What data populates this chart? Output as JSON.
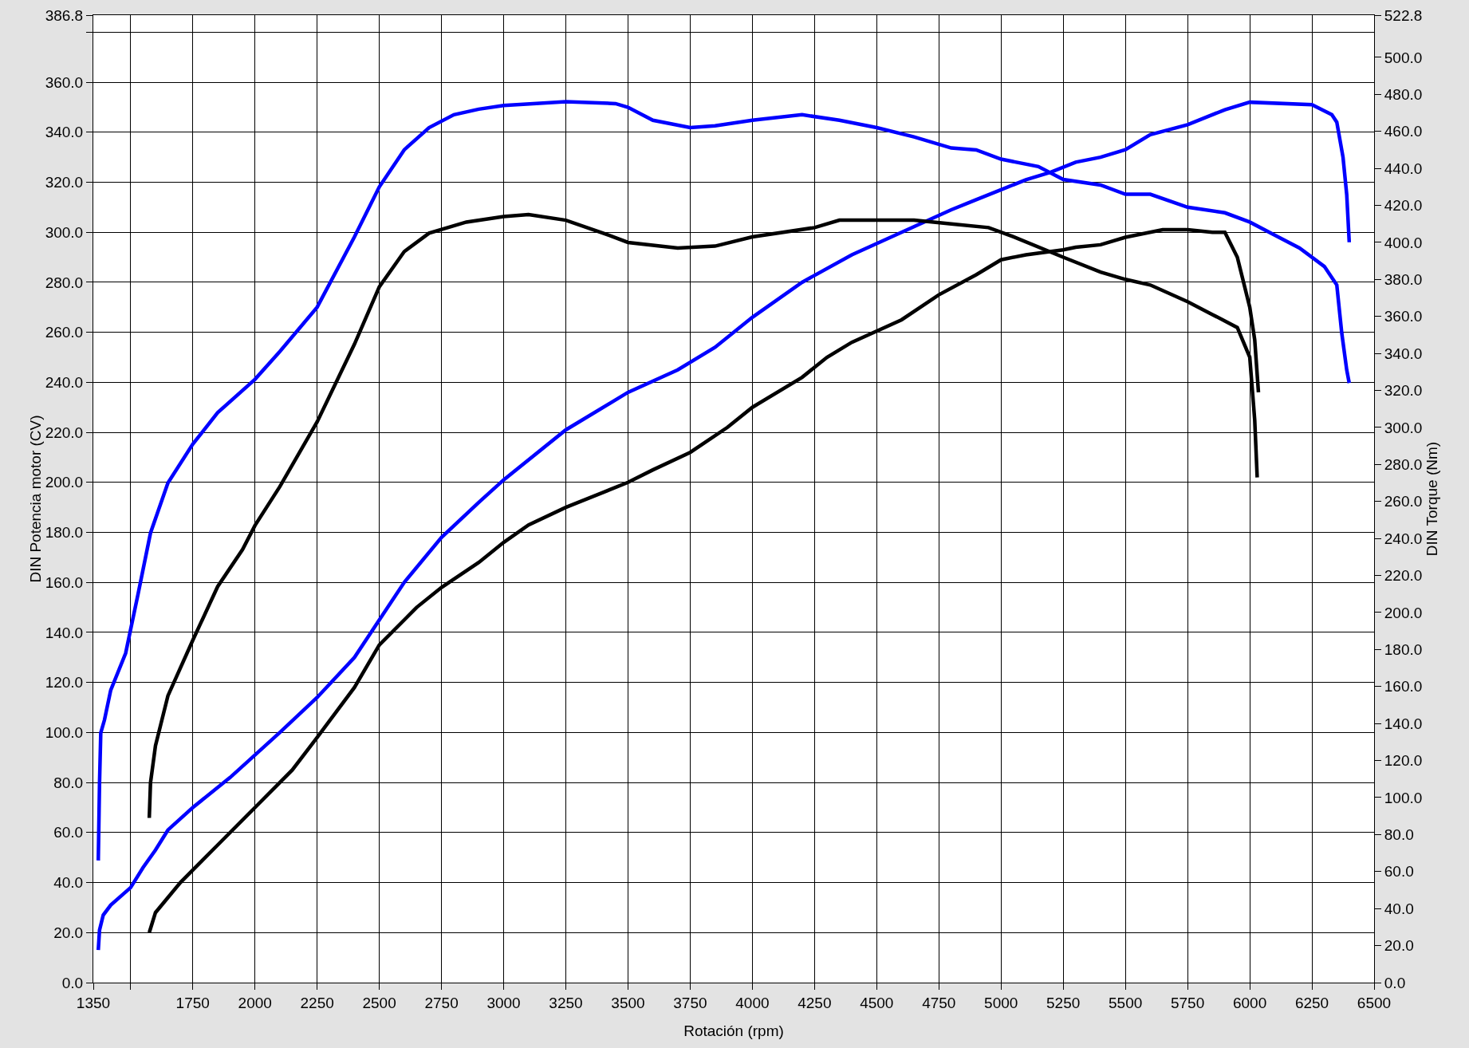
{
  "chart_data": {
    "type": "line",
    "xlabel": "Rotación (rpm)",
    "ylabel": "DIN Potencia motor (CV)",
    "y2label": "DIN Torque (Nm)",
    "grid": true,
    "xlim": [
      1350,
      6500
    ],
    "xticks": [
      1350,
      {
        "value": 1500,
        "label": null
      },
      1750,
      2000,
      2250,
      2500,
      2750,
      3000,
      3250,
      3500,
      3750,
      4000,
      4250,
      4500,
      4750,
      5000,
      5250,
      5500,
      5750,
      6000,
      6250,
      6500
    ],
    "ylim": [
      0,
      386.8
    ],
    "yticks": [
      {
        "value": 0,
        "label": "0.0"
      },
      {
        "value": 20,
        "label": "20.0"
      },
      {
        "value": 40,
        "label": "40.0"
      },
      {
        "value": 60,
        "label": "60.0"
      },
      {
        "value": 80,
        "label": "80.0"
      },
      {
        "value": 100,
        "label": "100.0"
      },
      {
        "value": 120,
        "label": "120.0"
      },
      {
        "value": 140,
        "label": "140.0"
      },
      {
        "value": 160,
        "label": "160.0"
      },
      {
        "value": 180,
        "label": "180.0"
      },
      {
        "value": 200,
        "label": "200.0"
      },
      {
        "value": 220,
        "label": "220.0"
      },
      {
        "value": 240,
        "label": "240.0"
      },
      {
        "value": 260,
        "label": "260.0"
      },
      {
        "value": 280,
        "label": "280.0"
      },
      {
        "value": 300,
        "label": "300.0"
      },
      {
        "value": 320,
        "label": "320.0"
      },
      {
        "value": 340,
        "label": "340.0"
      },
      {
        "value": 360,
        "label": "360.0"
      },
      {
        "value": 380,
        "label": null
      },
      386.8
    ],
    "y2lim": [
      0,
      522.8
    ],
    "y2ticks": [
      {
        "value": 0,
        "label": "0.0"
      },
      {
        "value": 20,
        "label": "20.0"
      },
      {
        "value": 40,
        "label": "40.0"
      },
      {
        "value": 60,
        "label": "60.0"
      },
      {
        "value": 80,
        "label": "80.0"
      },
      {
        "value": 100,
        "label": "100.0"
      },
      {
        "value": 120,
        "label": "120.0"
      },
      {
        "value": 140,
        "label": "140.0"
      },
      {
        "value": 160,
        "label": "160.0"
      },
      {
        "value": 180,
        "label": "180.0"
      },
      {
        "value": 200,
        "label": "200.0"
      },
      {
        "value": 220,
        "label": "220.0"
      },
      {
        "value": 240,
        "label": "240.0"
      },
      {
        "value": 260,
        "label": "260.0"
      },
      {
        "value": 280,
        "label": "280.0"
      },
      {
        "value": 300,
        "label": "300.0"
      },
      {
        "value": 320,
        "label": "320.0"
      },
      {
        "value": 340,
        "label": "340.0"
      },
      {
        "value": 360,
        "label": "360.0"
      },
      {
        "value": 380,
        "label": "380.0"
      },
      {
        "value": 400,
        "label": "400.0"
      },
      {
        "value": 420,
        "label": "420.0"
      },
      {
        "value": 440,
        "label": "440.0"
      },
      {
        "value": 460,
        "label": "460.0"
      },
      {
        "value": 480,
        "label": "480.0"
      },
      {
        "value": 500,
        "label": "500.0"
      },
      522.8
    ],
    "series": [
      {
        "color": "#0000ff",
        "x": [
          1370,
          1375,
          1390,
          1420,
          1500,
          1550,
          1600,
          1650,
          1750,
          1900,
          2000,
          2100,
          2250,
          2400,
          2500,
          2600,
          2750,
          2900,
          3000,
          3250,
          3500,
          3700,
          3850,
          4000,
          4200,
          4400,
          4600,
          4800,
          4900,
          5000,
          5100,
          5200,
          5300,
          5400,
          5500,
          5600,
          5750,
          5900,
          6000,
          6250,
          6330,
          6350,
          6375,
          6390,
          6400
        ],
        "values": [
          13,
          21,
          27,
          31,
          38,
          46,
          53,
          61,
          70,
          82,
          91,
          100,
          114,
          130,
          145,
          160,
          178,
          192,
          201,
          221,
          236,
          245,
          254,
          266,
          280,
          291,
          300,
          309,
          313,
          317,
          321,
          324,
          328,
          330,
          333,
          339,
          343,
          349,
          352,
          351,
          347,
          344,
          330,
          315,
          296
        ]
      },
      {
        "color": "#0000ff",
        "axis": "y2",
        "x": [
          1370,
          1375,
          1380,
          1395,
          1420,
          1480,
          1530,
          1580,
          1650,
          1750,
          1850,
          2000,
          2100,
          2250,
          2400,
          2500,
          2600,
          2700,
          2800,
          2900,
          3000,
          3250,
          3450,
          3500,
          3600,
          3750,
          3850,
          4000,
          4200,
          4350,
          4500,
          4650,
          4800,
          4900,
          5000,
          5150,
          5250,
          5400,
          5500,
          5600,
          5750,
          5900,
          6000,
          6100,
          6200,
          6300,
          6350,
          6370,
          6390,
          6400
        ],
        "values": [
          66,
          108,
          135,
          142,
          158,
          178,
          210,
          243,
          270,
          291,
          308,
          326,
          341,
          365,
          403,
          430,
          450,
          462,
          469,
          472,
          474,
          476,
          475,
          473,
          466,
          462,
          463,
          466,
          469,
          466,
          462,
          457,
          451,
          450,
          445,
          441,
          434,
          431,
          426,
          426,
          419,
          416,
          411,
          404,
          397,
          387,
          377,
          351,
          331,
          324
        ]
      },
      {
        "color": "#000000",
        "x": [
          1575,
          1600,
          1700,
          1850,
          2000,
          2150,
          2250,
          2400,
          2500,
          2650,
          2750,
          2900,
          3000,
          3100,
          3250,
          3400,
          3500,
          3600,
          3750,
          3900,
          4000,
          4200,
          4300,
          4400,
          4600,
          4750,
          4900,
          5000,
          5100,
          5250,
          5300,
          5400,
          5500,
          5650,
          5750,
          5850,
          5900,
          5950,
          6000,
          6020,
          6035
        ],
        "values": [
          20,
          28,
          40,
          55,
          70,
          85,
          98,
          118,
          135,
          150,
          158,
          168,
          176,
          183,
          190,
          196,
          200,
          205,
          212,
          222,
          230,
          242,
          250,
          256,
          265,
          275,
          283,
          289,
          291,
          293,
          294,
          295,
          298,
          301,
          301,
          300,
          300,
          290,
          270,
          257,
          236
        ]
      },
      {
        "color": "#000000",
        "axis": "y2",
        "x": [
          1575,
          1580,
          1600,
          1650,
          1750,
          1850,
          1950,
          2000,
          2100,
          2250,
          2400,
          2500,
          2600,
          2700,
          2850,
          3000,
          3100,
          3250,
          3400,
          3500,
          3700,
          3850,
          4000,
          4250,
          4350,
          4500,
          4650,
          4800,
          4950,
          5050,
          5250,
          5400,
          5500,
          5600,
          5750,
          5850,
          5950,
          6000,
          6020,
          6030
        ],
        "values": [
          89,
          108,
          128,
          155,
          185,
          214,
          234,
          247,
          268,
          303,
          345,
          376,
          395,
          405,
          411,
          414,
          415,
          412,
          405,
          400,
          397,
          398,
          403,
          408,
          412,
          412,
          412,
          410,
          408,
          403,
          392,
          384,
          380,
          377,
          368,
          361,
          354,
          338,
          304,
          273
        ]
      }
    ]
  }
}
